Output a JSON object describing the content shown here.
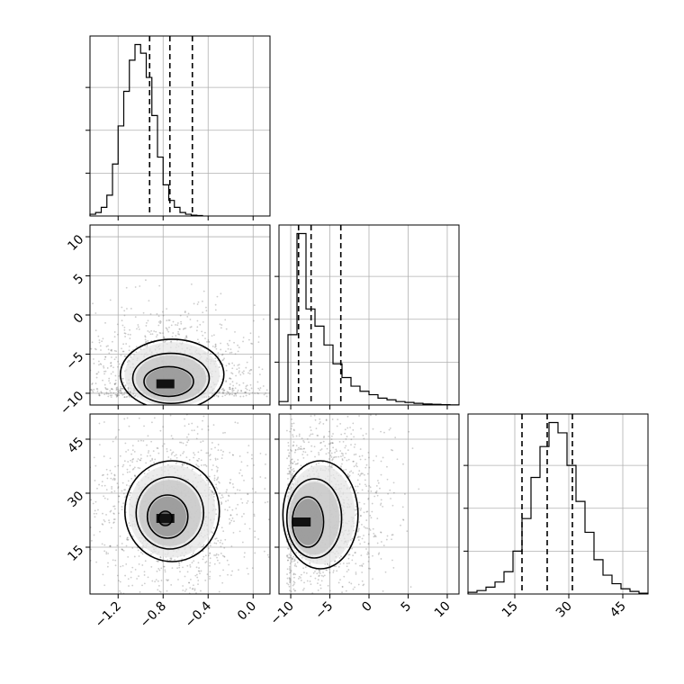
{
  "chart_data": {
    "type": "corner",
    "title": "",
    "parameters": [
      {
        "label": "",
        "range": [
          -1.45,
          -0.45
        ],
        "axis_range": [
          -1.45,
          0.15
        ],
        "ticks": [
          -1.2,
          -0.8,
          -0.4,
          0.0
        ],
        "tick_labels": [
          "−1.2",
          "−0.8",
          "−0.4",
          "0.0"
        ],
        "quantiles": [
          -0.92,
          -0.74,
          -0.54
        ],
        "histogram": [
          1,
          2,
          5,
          12,
          30,
          52,
          72,
          90,
          99,
          94,
          80,
          58,
          34,
          18,
          9,
          5,
          2,
          1,
          0.5,
          0.3
        ]
      },
      {
        "label": "",
        "range": [
          -11.5,
          11.5
        ],
        "axis_range": [
          -11.5,
          11.5
        ],
        "ticks": [
          -10,
          -5,
          0,
          5,
          10
        ],
        "tick_labels": [
          "−10",
          "−5",
          "0",
          "5",
          "10"
        ],
        "quantiles": [
          -9.0,
          -7.4,
          -3.6
        ],
        "histogram": [
          2,
          41,
          100,
          56,
          46,
          35,
          24,
          16,
          11,
          8,
          6,
          4,
          3,
          2,
          1.5,
          1,
          0.6,
          0.4,
          0.2,
          0.1
        ]
      },
      {
        "label": "",
        "range": [
          2,
          52
        ],
        "axis_range": [
          2,
          52
        ],
        "ticks": [
          15,
          30,
          45
        ],
        "tick_labels": [
          "15",
          "30",
          "45"
        ],
        "quantiles": [
          17,
          24,
          31
        ],
        "histogram": [
          1,
          2,
          4,
          7,
          13,
          25,
          44,
          68,
          86,
          100,
          94,
          75,
          54,
          36,
          20,
          11,
          6,
          3,
          1.5,
          0.5
        ]
      }
    ],
    "pairs": [
      {
        "x_param": 0,
        "y_param": 1,
        "peak": [
          -0.78,
          -8.8
        ],
        "contours": [
          {
            "cx": -0.72,
            "cy": -7.6,
            "rx": 0.46,
            "ry": 4.5
          },
          {
            "cx": -0.73,
            "cy": -8.1,
            "rx": 0.34,
            "ry": 3.2
          },
          {
            "cx": -0.75,
            "cy": -8.5,
            "rx": 0.22,
            "ry": 1.9
          }
        ]
      },
      {
        "x_param": 0,
        "y_param": 2,
        "peak": [
          -0.78,
          23
        ],
        "contours": [
          {
            "cx": -0.72,
            "cy": 25,
            "rx": 0.42,
            "ry": 14
          },
          {
            "cx": -0.74,
            "cy": 24.5,
            "rx": 0.3,
            "ry": 10
          },
          {
            "cx": -0.76,
            "cy": 23.5,
            "rx": 0.18,
            "ry": 6
          },
          {
            "cx": -0.78,
            "cy": 23,
            "rx": 0.06,
            "ry": 2
          }
        ]
      },
      {
        "x_param": 1,
        "y_param": 2,
        "peak": [
          -8.6,
          22
        ],
        "contours": [
          {
            "cx": -6.2,
            "cy": 24,
            "rx": 4.8,
            "ry": 15
          },
          {
            "cx": -7.0,
            "cy": 23,
            "rx": 3.5,
            "ry": 11
          },
          {
            "cx": -7.8,
            "cy": 22,
            "rx": 2.0,
            "ry": 7
          }
        ]
      }
    ]
  }
}
